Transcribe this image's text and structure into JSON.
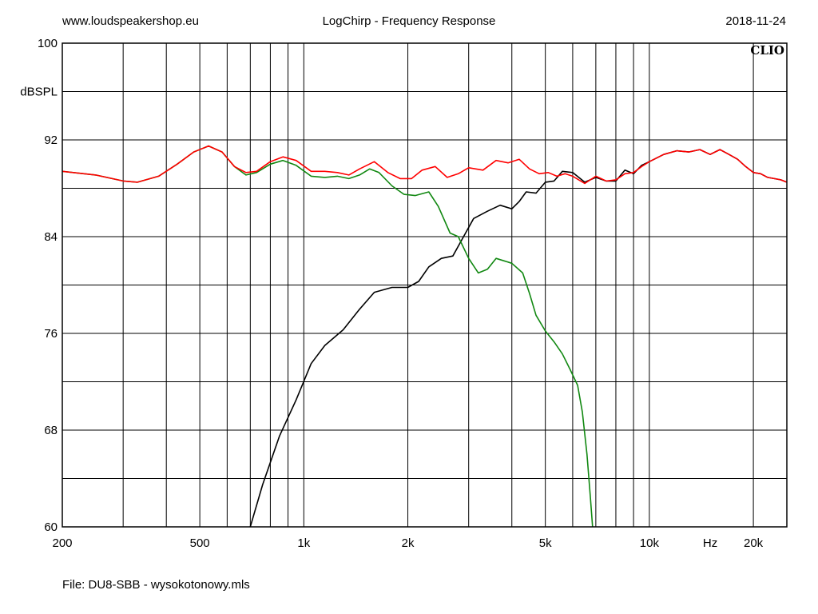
{
  "header": {
    "site": "www.loudspeakershop.eu",
    "title": "LogChirp - Frequency Response",
    "date": "2018-11-24"
  },
  "footer": {
    "file": "File: DU8-SBB - wysokotonowy.mls"
  },
  "chart_data": {
    "type": "line",
    "brand": "CLIO",
    "ylabel": "dBSPL",
    "xunit": "Hz",
    "xscale": "log",
    "xlim": [
      200,
      25000
    ],
    "ylim": [
      60,
      100
    ],
    "yticks": [
      60,
      68,
      76,
      84,
      92,
      100
    ],
    "yminor": [
      64,
      72,
      80,
      88,
      96
    ],
    "xgrid": [
      200,
      300,
      400,
      500,
      600,
      700,
      800,
      900,
      1000,
      2000,
      3000,
      4000,
      5000,
      6000,
      7000,
      8000,
      9000,
      10000,
      20000
    ],
    "xticks": [
      {
        "x": 200,
        "label": "200"
      },
      {
        "x": 500,
        "label": "500"
      },
      {
        "x": 1000,
        "label": "1k"
      },
      {
        "x": 2000,
        "label": "2k"
      },
      {
        "x": 5000,
        "label": "5k"
      },
      {
        "x": 10000,
        "label": "10k"
      },
      {
        "x": 20000,
        "label": "20k"
      }
    ],
    "series": [
      {
        "color": "#000000",
        "points": [
          [
            700,
            60
          ],
          [
            760,
            63.5
          ],
          [
            850,
            67.5
          ],
          [
            950,
            70.5
          ],
          [
            1050,
            73.5
          ],
          [
            1150,
            75
          ],
          [
            1300,
            76.3
          ],
          [
            1450,
            78
          ],
          [
            1600,
            79.4
          ],
          [
            1800,
            79.8
          ],
          [
            2000,
            79.8
          ],
          [
            2150,
            80.3
          ],
          [
            2300,
            81.5
          ],
          [
            2500,
            82.2
          ],
          [
            2700,
            82.4
          ],
          [
            2900,
            84
          ],
          [
            3100,
            85.5
          ],
          [
            3400,
            86.1
          ],
          [
            3700,
            86.6
          ],
          [
            4000,
            86.3
          ],
          [
            4200,
            86.9
          ],
          [
            4400,
            87.7
          ],
          [
            4700,
            87.6
          ],
          [
            5000,
            88.5
          ],
          [
            5300,
            88.6
          ],
          [
            5600,
            89.4
          ],
          [
            6000,
            89.3
          ],
          [
            6500,
            88.5
          ],
          [
            7000,
            88.9
          ],
          [
            7500,
            88.6
          ],
          [
            8000,
            88.6
          ],
          [
            8500,
            89.5
          ],
          [
            9000,
            89.2
          ],
          [
            9500,
            89.9
          ],
          [
            10000,
            90.2
          ],
          [
            11000,
            90.8
          ],
          [
            12000,
            91.1
          ],
          [
            13000,
            91
          ],
          [
            14000,
            91.2
          ],
          [
            15000,
            90.8
          ],
          [
            16000,
            91.2
          ],
          [
            17000,
            90.8
          ],
          [
            18000,
            90.4
          ],
          [
            19000,
            89.8
          ],
          [
            20000,
            89.3
          ],
          [
            21000,
            89.2
          ],
          [
            22000,
            88.9
          ],
          [
            23000,
            88.8
          ],
          [
            24000,
            88.7
          ],
          [
            25000,
            88.5
          ]
        ]
      },
      {
        "color": "#118811",
        "points": [
          [
            200,
            89.4
          ],
          [
            250,
            89.1
          ],
          [
            300,
            88.6
          ],
          [
            330,
            88.5
          ],
          [
            380,
            89
          ],
          [
            430,
            90
          ],
          [
            480,
            91
          ],
          [
            530,
            91.5
          ],
          [
            580,
            91
          ],
          [
            630,
            89.8
          ],
          [
            680,
            89.1
          ],
          [
            730,
            89.3
          ],
          [
            800,
            90
          ],
          [
            870,
            90.3
          ],
          [
            950,
            89.9
          ],
          [
            1050,
            89
          ],
          [
            1150,
            88.9
          ],
          [
            1250,
            89
          ],
          [
            1350,
            88.8
          ],
          [
            1450,
            89.1
          ],
          [
            1550,
            89.6
          ],
          [
            1650,
            89.3
          ],
          [
            1800,
            88.2
          ],
          [
            1950,
            87.5
          ],
          [
            2100,
            87.4
          ],
          [
            2300,
            87.7
          ],
          [
            2450,
            86.5
          ],
          [
            2650,
            84.3
          ],
          [
            2800,
            84
          ],
          [
            3000,
            82.2
          ],
          [
            3200,
            81
          ],
          [
            3400,
            81.3
          ],
          [
            3600,
            82.2
          ],
          [
            3800,
            82
          ],
          [
            4000,
            81.8
          ],
          [
            4300,
            81
          ],
          [
            4500,
            79.3
          ],
          [
            4700,
            77.5
          ],
          [
            5000,
            76.2
          ],
          [
            5300,
            75.3
          ],
          [
            5600,
            74.3
          ],
          [
            5900,
            73
          ],
          [
            6200,
            71.7
          ],
          [
            6400,
            69.5
          ],
          [
            6600,
            66
          ],
          [
            6750,
            62.5
          ],
          [
            6850,
            60
          ]
        ]
      },
      {
        "color": "#ff0000",
        "points": [
          [
            200,
            89.4
          ],
          [
            250,
            89.1
          ],
          [
            300,
            88.6
          ],
          [
            330,
            88.5
          ],
          [
            380,
            89
          ],
          [
            430,
            90
          ],
          [
            480,
            91
          ],
          [
            530,
            91.5
          ],
          [
            580,
            91
          ],
          [
            630,
            89.8
          ],
          [
            680,
            89.3
          ],
          [
            730,
            89.4
          ],
          [
            800,
            90.2
          ],
          [
            870,
            90.6
          ],
          [
            950,
            90.3
          ],
          [
            1050,
            89.4
          ],
          [
            1150,
            89.4
          ],
          [
            1250,
            89.3
          ],
          [
            1350,
            89.1
          ],
          [
            1450,
            89.6
          ],
          [
            1600,
            90.2
          ],
          [
            1750,
            89.3
          ],
          [
            1900,
            88.8
          ],
          [
            2050,
            88.8
          ],
          [
            2200,
            89.5
          ],
          [
            2400,
            89.8
          ],
          [
            2600,
            88.9
          ],
          [
            2800,
            89.2
          ],
          [
            3000,
            89.7
          ],
          [
            3300,
            89.5
          ],
          [
            3600,
            90.3
          ],
          [
            3900,
            90.1
          ],
          [
            4200,
            90.4
          ],
          [
            4500,
            89.6
          ],
          [
            4800,
            89.2
          ],
          [
            5100,
            89.3
          ],
          [
            5400,
            89
          ],
          [
            5700,
            89.2
          ],
          [
            6000,
            89
          ],
          [
            6500,
            88.4
          ],
          [
            7000,
            89
          ],
          [
            7500,
            88.6
          ],
          [
            8000,
            88.7
          ],
          [
            8500,
            89.2
          ],
          [
            9000,
            89.3
          ],
          [
            9500,
            89.8
          ],
          [
            10000,
            90.2
          ],
          [
            11000,
            90.8
          ],
          [
            12000,
            91.1
          ],
          [
            13000,
            91
          ],
          [
            14000,
            91.2
          ],
          [
            15000,
            90.8
          ],
          [
            16000,
            91.2
          ],
          [
            17000,
            90.8
          ],
          [
            18000,
            90.4
          ],
          [
            19000,
            89.8
          ],
          [
            20000,
            89.3
          ],
          [
            21000,
            89.2
          ],
          [
            22000,
            88.9
          ],
          [
            23000,
            88.8
          ],
          [
            24000,
            88.7
          ],
          [
            25000,
            88.5
          ]
        ]
      }
    ]
  }
}
